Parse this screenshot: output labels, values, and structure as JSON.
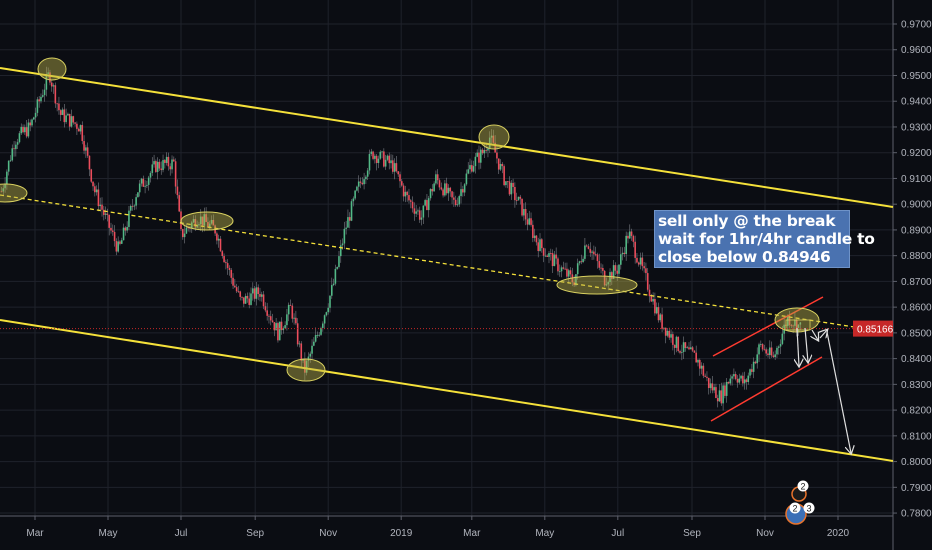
{
  "chart_data": {
    "type": "candlestick",
    "ylim": [
      0.775,
      0.975
    ],
    "y_ticks": [
      "0.97000",
      "0.96000",
      "0.95000",
      "0.94000",
      "0.93000",
      "0.92000",
      "0.91000",
      "0.90000",
      "0.89000",
      "0.88000",
      "0.87000",
      "0.86000",
      "0.85000",
      "0.84000",
      "0.83000",
      "0.82000",
      "0.81000",
      "0.80000",
      "0.79000",
      "0.78000"
    ],
    "x_ticks": [
      {
        "label": "Mar",
        "date": "2018-03-01"
      },
      {
        "label": "May",
        "date": "2018-05-01"
      },
      {
        "label": "Jul",
        "date": "2018-07-01"
      },
      {
        "label": "Sep",
        "date": "2018-09-01"
      },
      {
        "label": "Nov",
        "date": "2018-11-01"
      },
      {
        "label": "2019",
        "date": "2019-01-01"
      },
      {
        "label": "Mar",
        "date": "2019-03-01"
      },
      {
        "label": "May",
        "date": "2019-05-01"
      },
      {
        "label": "Jul",
        "date": "2019-07-01"
      },
      {
        "label": "Sep",
        "date": "2019-09-01"
      },
      {
        "label": "Nov",
        "date": "2019-11-01"
      },
      {
        "label": "2020",
        "date": "2020-01-01"
      }
    ],
    "grid": true,
    "current_price": "0.85166",
    "price_path": [
      [
        "2018-02-01",
        0.905
      ],
      [
        "2018-02-12",
        0.925
      ],
      [
        "2018-02-25",
        0.93
      ],
      [
        "2018-03-06",
        0.942
      ],
      [
        "2018-03-13",
        0.951
      ],
      [
        "2018-03-22",
        0.935
      ],
      [
        "2018-04-08",
        0.93
      ],
      [
        "2018-04-20",
        0.905
      ],
      [
        "2018-05-03",
        0.89
      ],
      [
        "2018-05-10",
        0.882
      ],
      [
        "2018-05-25",
        0.905
      ],
      [
        "2018-06-10",
        0.915
      ],
      [
        "2018-06-25",
        0.916
      ],
      [
        "2018-07-01",
        0.888
      ],
      [
        "2018-07-15",
        0.895
      ],
      [
        "2018-07-30",
        0.89
      ],
      [
        "2018-08-10",
        0.874
      ],
      [
        "2018-08-20",
        0.862
      ],
      [
        "2018-09-05",
        0.866
      ],
      [
        "2018-09-20",
        0.85
      ],
      [
        "2018-10-01",
        0.86
      ],
      [
        "2018-10-12",
        0.835
      ],
      [
        "2018-10-25",
        0.852
      ],
      [
        "2018-11-05",
        0.868
      ],
      [
        "2018-11-15",
        0.89
      ],
      [
        "2018-11-25",
        0.905
      ],
      [
        "2018-12-08",
        0.92
      ],
      [
        "2018-12-25",
        0.915
      ],
      [
        "2019-01-05",
        0.903
      ],
      [
        "2019-01-18",
        0.895
      ],
      [
        "2019-01-30",
        0.91
      ],
      [
        "2019-02-15",
        0.9
      ],
      [
        "2019-02-28",
        0.915
      ],
      [
        "2019-03-10",
        0.92
      ],
      [
        "2019-03-16",
        0.926
      ],
      [
        "2019-03-28",
        0.91
      ],
      [
        "2019-04-10",
        0.9
      ],
      [
        "2019-04-25",
        0.885
      ],
      [
        "2019-05-10",
        0.877
      ],
      [
        "2019-05-25",
        0.87
      ],
      [
        "2019-06-05",
        0.886
      ],
      [
        "2019-06-20",
        0.871
      ],
      [
        "2019-07-01",
        0.875
      ],
      [
        "2019-07-10",
        0.889
      ],
      [
        "2019-07-25",
        0.87
      ],
      [
        "2019-08-05",
        0.855
      ],
      [
        "2019-08-20",
        0.845
      ],
      [
        "2019-09-05",
        0.84
      ],
      [
        "2019-09-15",
        0.83
      ],
      [
        "2019-09-25",
        0.825
      ],
      [
        "2019-10-05",
        0.835
      ],
      [
        "2019-10-15",
        0.83
      ],
      [
        "2019-10-28",
        0.845
      ],
      [
        "2019-11-08",
        0.84
      ],
      [
        "2019-11-20",
        0.856
      ],
      [
        "2019-12-01",
        0.852
      ]
    ],
    "colors": {
      "up": "#53b987",
      "down": "#eb4d5c",
      "trendline": "#f5e13a",
      "channel": "#ff3b30",
      "ellipse": "#b8b04a",
      "arrow": "#e0e0e0",
      "price_label": "#c62828"
    }
  },
  "annotation": {
    "lines": [
      "sell only @ the break",
      "wait for 1hr/4hr candle to",
      "close below 0.84946"
    ],
    "background": "#4a72b0"
  },
  "badges": [
    "2",
    "2",
    "3"
  ]
}
